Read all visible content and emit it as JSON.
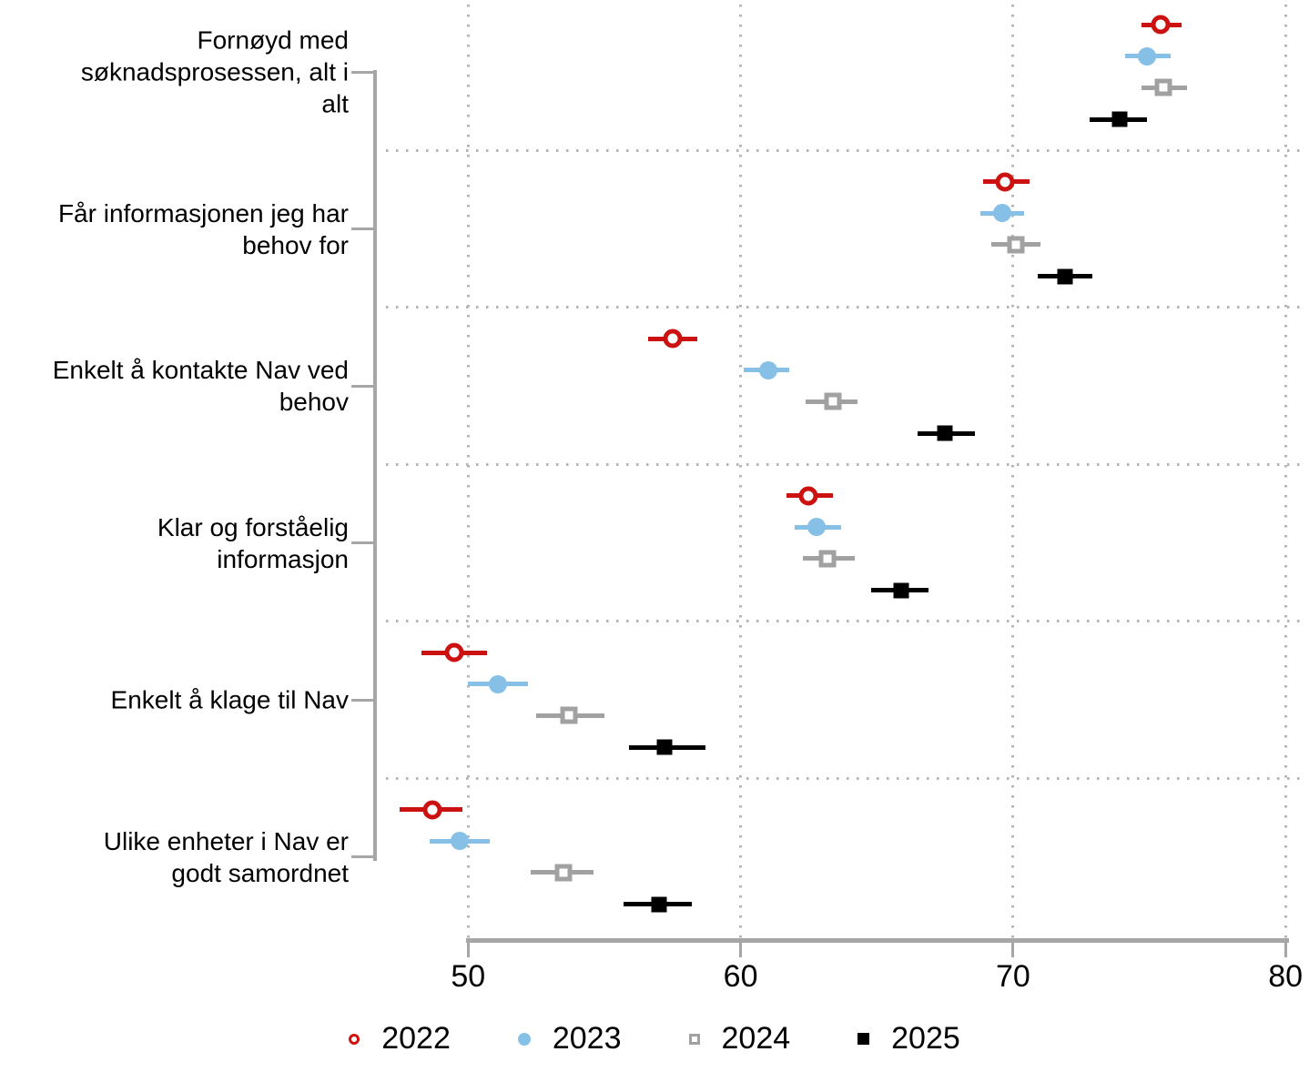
{
  "chart_data": {
    "type": "scatter",
    "subtype": "dot-plot-with-confidence-intervals",
    "title": "",
    "xlabel": "",
    "ylabel": "",
    "xticks": [
      50,
      60,
      70,
      80
    ],
    "xlim": [
      47.0,
      80.6
    ],
    "grid": "dotted",
    "legend_position": "bottom-center",
    "categories": [
      "Fornøyd med\nsøknadsprosessen, alt i\nalt",
      "Får informasjonen jeg har\nbehov for",
      "Enkelt å kontakte Nav ved\nbehov",
      "Klar og forståelig\ninformasjon",
      "Enkelt å klage til Nav",
      "Ulike enheter i Nav er\ngodt samordnet"
    ],
    "series": [
      {
        "name": "2022",
        "marker": "open-circle",
        "color": "#CC1111",
        "values": [
          75.4,
          69.7,
          57.5,
          62.5,
          49.5,
          48.7
        ],
        "ci_low": [
          74.7,
          68.9,
          56.6,
          61.7,
          48.3,
          47.5
        ],
        "ci_high": [
          76.2,
          70.6,
          58.4,
          63.4,
          50.7,
          49.8
        ]
      },
      {
        "name": "2023",
        "marker": "filled-circle",
        "color": "#86C0E6",
        "values": [
          74.9,
          69.6,
          61.0,
          62.8,
          51.1,
          49.7
        ],
        "ci_low": [
          74.1,
          68.8,
          60.1,
          62.0,
          50.0,
          48.6
        ],
        "ci_high": [
          75.8,
          70.4,
          61.8,
          63.7,
          52.2,
          50.8
        ]
      },
      {
        "name": "2024",
        "marker": "open-square",
        "color": "#A1A1A1",
        "values": [
          75.5,
          70.1,
          63.4,
          63.2,
          53.7,
          53.5
        ],
        "ci_low": [
          74.7,
          69.2,
          62.4,
          62.3,
          52.5,
          52.3
        ],
        "ci_high": [
          76.4,
          71.0,
          64.3,
          64.2,
          55.0,
          54.6
        ]
      },
      {
        "name": "2025",
        "marker": "filled-square",
        "color": "#000000",
        "values": [
          73.9,
          71.9,
          67.5,
          65.9,
          57.2,
          57.0
        ],
        "ci_low": [
          72.8,
          70.9,
          66.5,
          64.8,
          55.9,
          55.7
        ],
        "ci_high": [
          74.9,
          72.9,
          68.6,
          66.9,
          58.7,
          58.2
        ]
      }
    ],
    "colors": {
      "grid": "#b4b4b4",
      "axis": "#a6a6a6",
      "text": "#000000"
    }
  }
}
